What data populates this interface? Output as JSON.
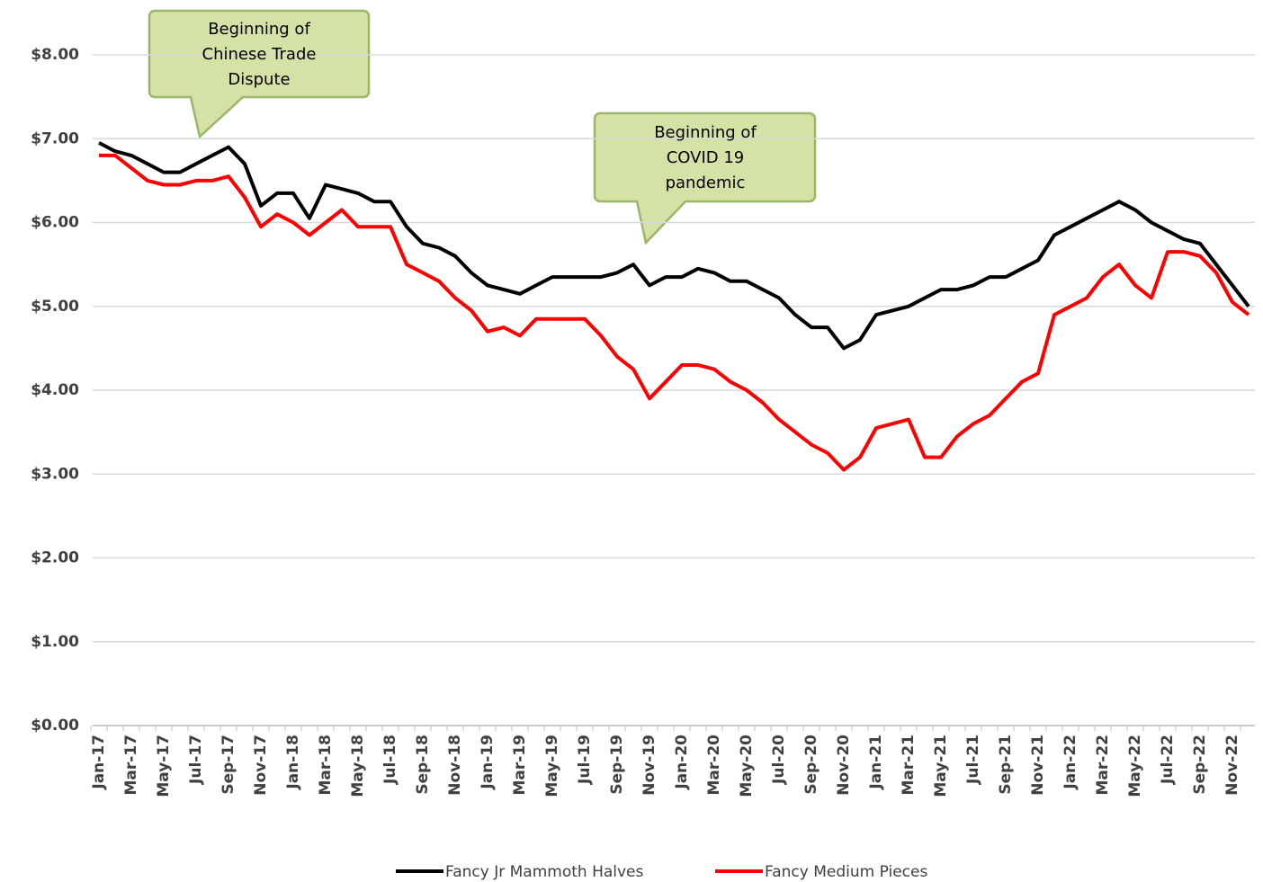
{
  "chart_data": {
    "type": "line",
    "categories": [
      "Jan-17",
      null,
      "Mar-17",
      null,
      "May-17",
      null,
      "Jul-17",
      null,
      "Sep-17",
      null,
      "Nov-17",
      null,
      "Jan-18",
      null,
      "Mar-18",
      null,
      "May-18",
      null,
      "Jul-18",
      null,
      "Sep-18",
      null,
      "Nov-18",
      null,
      "Jan-19",
      null,
      "Mar-19",
      null,
      "May-19",
      null,
      "Jul-19",
      null,
      "Sep-19",
      null,
      "Nov-19",
      null,
      "Jan-20",
      null,
      "Mar-20",
      null,
      "May-20",
      null,
      "Jul-20",
      null,
      "Sep-20",
      null,
      "Nov-20",
      null,
      "Jan-21",
      null,
      "Mar-21",
      null,
      "May-21",
      null,
      "Jul-21",
      null,
      "Sep-21",
      null,
      "Nov-21",
      null,
      "Jan-22",
      null,
      "Mar-22",
      null,
      "May-22",
      null,
      "Jul-22",
      null,
      "Sep-22",
      null,
      "Nov-22",
      null
    ],
    "series": [
      {
        "name": "Fancy Jr Mammoth Halves",
        "color": "#000000",
        "values": [
          6.95,
          6.85,
          6.8,
          6.7,
          6.6,
          6.6,
          6.7,
          6.8,
          6.9,
          6.7,
          6.2,
          6.35,
          6.35,
          6.05,
          6.45,
          6.4,
          6.35,
          6.25,
          6.25,
          5.95,
          5.75,
          5.7,
          5.6,
          5.4,
          5.25,
          5.2,
          5.15,
          5.25,
          5.35,
          5.35,
          5.35,
          5.35,
          5.4,
          5.5,
          5.25,
          5.35,
          5.35,
          5.45,
          5.4,
          5.3,
          5.3,
          5.2,
          5.1,
          4.9,
          4.75,
          4.75,
          4.5,
          4.6,
          4.9,
          4.95,
          5.0,
          5.1,
          5.2,
          5.2,
          5.25,
          5.35,
          5.35,
          5.45,
          5.55,
          5.85,
          5.95,
          6.05,
          6.15,
          6.25,
          6.15,
          6.0,
          5.9,
          5.8,
          5.75,
          5.5,
          5.25,
          5.0
        ]
      },
      {
        "name": "Fancy Medium Pieces",
        "color": "#ff0000",
        "values": [
          6.8,
          6.8,
          6.65,
          6.5,
          6.45,
          6.45,
          6.5,
          6.5,
          6.55,
          6.3,
          5.95,
          6.1,
          6.0,
          5.85,
          6.0,
          6.15,
          5.95,
          5.95,
          5.95,
          5.5,
          5.4,
          5.3,
          5.1,
          4.95,
          4.7,
          4.75,
          4.65,
          4.85,
          4.85,
          4.85,
          4.85,
          4.65,
          4.4,
          4.25,
          3.9,
          4.1,
          4.3,
          4.3,
          4.25,
          4.1,
          4.0,
          3.85,
          3.65,
          3.5,
          3.35,
          3.25,
          3.05,
          3.2,
          3.55,
          3.6,
          3.65,
          3.2,
          3.2,
          3.45,
          3.6,
          3.7,
          3.9,
          4.1,
          4.2,
          4.9,
          5.0,
          5.1,
          5.35,
          5.5,
          5.25,
          5.1,
          5.65,
          5.65,
          5.6,
          5.4,
          5.05,
          4.9
        ]
      }
    ],
    "ylim": [
      0,
      8
    ],
    "yticks": [
      {
        "value": 0,
        "label": "$0.00"
      },
      {
        "value": 1,
        "label": "$1.00"
      },
      {
        "value": 2,
        "label": "$2.00"
      },
      {
        "value": 3,
        "label": "$3.00"
      },
      {
        "value": 4,
        "label": "$4.00"
      },
      {
        "value": 5,
        "label": "$5.00"
      },
      {
        "value": 6,
        "label": "$6.00"
      },
      {
        "value": 7,
        "label": "$7.00"
      },
      {
        "value": 8,
        "label": "$8.00"
      }
    ],
    "grid": true,
    "legend": "bottom",
    "annotations": [
      {
        "lines": [
          "Beginning of",
          "Chinese Trade",
          "Dispute"
        ]
      },
      {
        "lines": [
          "Beginning of",
          "COVID 19",
          "pandemic"
        ]
      }
    ]
  }
}
